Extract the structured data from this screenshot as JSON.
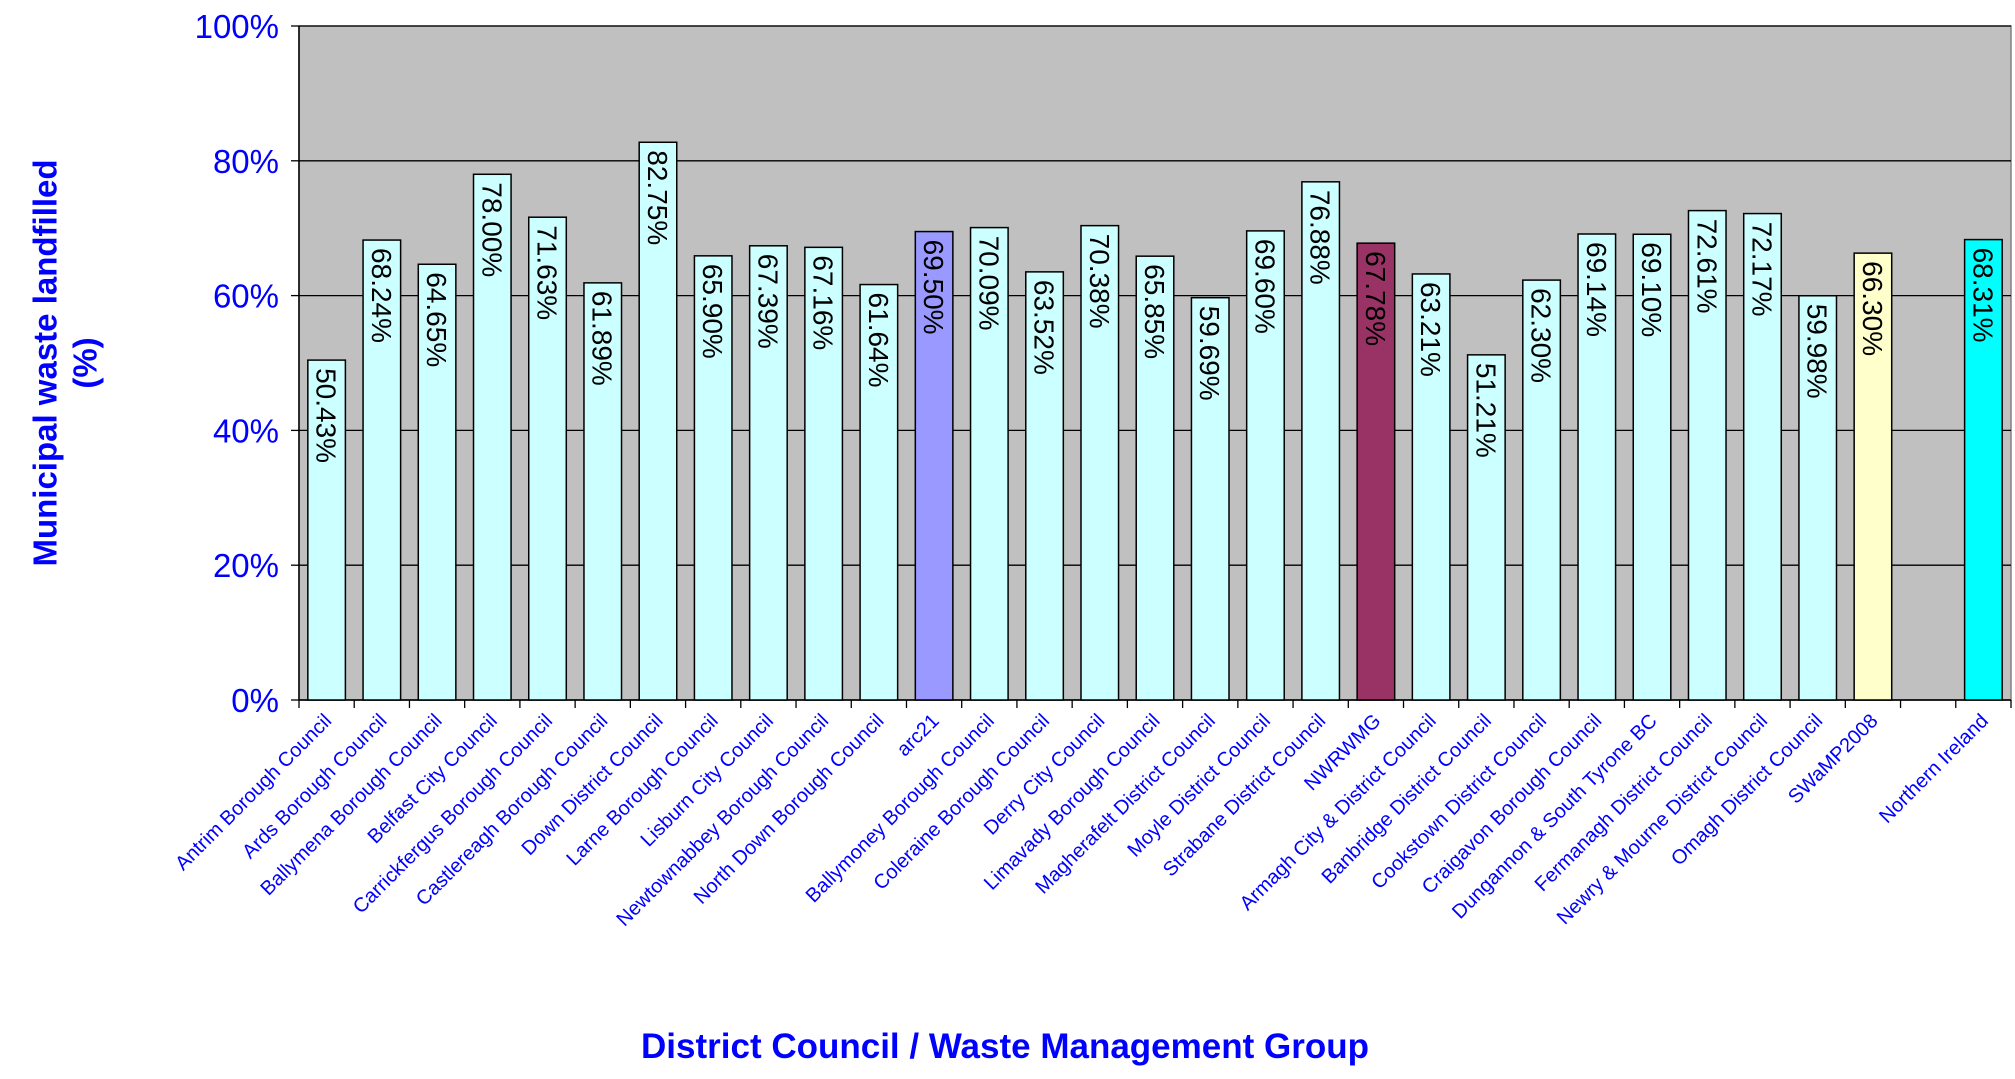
{
  "chart_data": {
    "type": "bar",
    "x_label": "District Council / Waste Management Group",
    "y_label": "Municipal waste landfilled (%)",
    "categories": [
      "Antrim Borough Council",
      "Ards Borough Council",
      "Ballymena Borough Council",
      "Belfast City Council",
      "Carrickfergus Borough Council",
      "Castlereagh Borough Council",
      "Down District Council",
      "Larne Borough Council",
      "Lisburn City Council",
      "Newtownabbey Borough Council",
      "North Down Borough Council",
      "arc21",
      "Ballymoney Borough Council",
      "Coleraine Borough Council",
      "Derry City Council",
      "Limavady Borough Council",
      "Magherafelt District Council",
      "Moyle District Council",
      "Strabane District Council",
      "NWRWMG",
      "Armagh City & District Council",
      "Banbridge District Council",
      "Cookstown District Council",
      "Craigavon Borough Council",
      "Dungannon & South Tyrone BC",
      "Fermanagh District Council",
      "Newry & Mourne District Council",
      "Omagh District Council",
      "SWaMP2008",
      null,
      "Northern Ireland"
    ],
    "values": [
      50.43,
      68.24,
      64.65,
      78.0,
      71.63,
      61.89,
      82.75,
      65.9,
      67.39,
      67.16,
      61.64,
      69.5,
      70.09,
      63.52,
      70.38,
      65.85,
      59.69,
      69.6,
      76.88,
      67.78,
      63.21,
      51.21,
      62.3,
      69.14,
      69.1,
      72.61,
      72.17,
      59.98,
      66.3,
      null,
      68.31
    ],
    "value_labels": [
      "50.43%",
      "68.24%",
      "64.65%",
      "78.00%",
      "71.63%",
      "61.89%",
      "82.75%",
      "65.90%",
      "67.39%",
      "67.16%",
      "61.64%",
      "69.50%",
      "70.09%",
      "63.52%",
      "70.38%",
      "65.85%",
      "59.69%",
      "69.60%",
      "76.88%",
      "67.78%",
      "63.21%",
      "51.21%",
      "62.30%",
      "69.14%",
      "69.10%",
      "72.61%",
      "72.17%",
      "59.98%",
      "66.30%",
      null,
      "68.31%"
    ],
    "colors": [
      "#ccffff",
      "#ccffff",
      "#ccffff",
      "#ccffff",
      "#ccffff",
      "#ccffff",
      "#ccffff",
      "#ccffff",
      "#ccffff",
      "#ccffff",
      "#ccffff",
      "#9999ff",
      "#ccffff",
      "#ccffff",
      "#ccffff",
      "#ccffff",
      "#ccffff",
      "#ccffff",
      "#ccffff",
      "#993366",
      "#ccffff",
      "#ccffff",
      "#ccffff",
      "#ccffff",
      "#ccffff",
      "#ccffff",
      "#ccffff",
      "#ccffff",
      "#ffffcc",
      null,
      "#00ffff"
    ],
    "ylim": [
      0,
      100
    ],
    "yticks": [
      {
        "value": 0,
        "label": "0%"
      },
      {
        "value": 20,
        "label": "20%"
      },
      {
        "value": 40,
        "label": "40%"
      },
      {
        "value": 60,
        "label": "60%"
      },
      {
        "value": 80,
        "label": "80%"
      },
      {
        "value": 100,
        "label": "100%"
      }
    ],
    "grid": true
  }
}
